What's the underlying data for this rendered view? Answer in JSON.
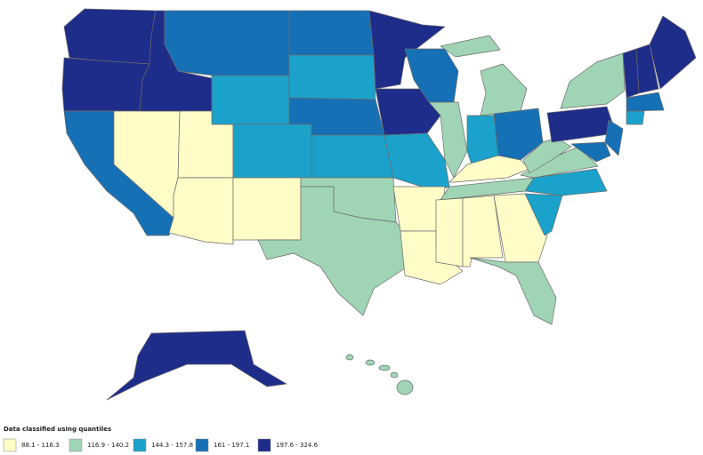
{
  "legend": {
    "title": "Data classified using quantiles",
    "items": [
      {
        "label": "88.1 - 116.3",
        "color": "#fffcc8"
      },
      {
        "label": "116.9 - 140.2",
        "color": "#9fd5b5"
      },
      {
        "label": "144.3 - 157.8",
        "color": "#1aa2cb"
      },
      {
        "label": "161 - 197.1",
        "color": "#1670b6"
      },
      {
        "label": "197.6 - 324.6",
        "color": "#1e2c8a"
      }
    ]
  }
}
